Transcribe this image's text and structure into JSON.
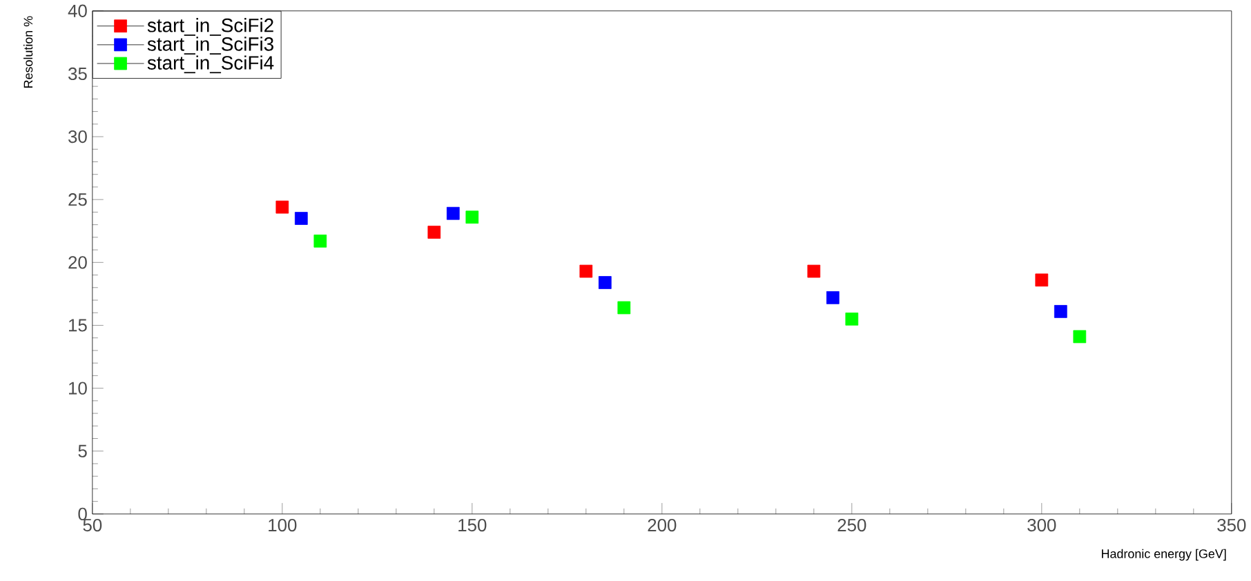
{
  "chart_data": {
    "type": "scatter",
    "xlabel": "Hadronic energy [GeV]",
    "ylabel": "Resolution %",
    "xlim": [
      50,
      350
    ],
    "ylim": [
      0,
      40
    ],
    "xticks": [
      50,
      100,
      150,
      200,
      250,
      300,
      350
    ],
    "yticks": [
      0,
      5,
      10,
      15,
      20,
      25,
      30,
      35,
      40
    ],
    "marker": "square",
    "legend": "top left",
    "grid": false,
    "series": [
      {
        "name": "start_in_SciFi2",
        "color": "#ff0000",
        "x": [
          100,
          140,
          180,
          240,
          300
        ],
        "values": [
          24.4,
          22.4,
          19.3,
          19.3,
          18.6
        ]
      },
      {
        "name": "start_in_SciFi3",
        "color": "#0000ff",
        "x": [
          105,
          145,
          185,
          245,
          305
        ],
        "values": [
          23.5,
          23.9,
          18.4,
          17.2,
          16.1
        ]
      },
      {
        "name": "start_in_SciFi4",
        "color": "#00ff00",
        "x": [
          110,
          150,
          190,
          250,
          310
        ],
        "values": [
          21.7,
          23.6,
          16.4,
          15.5,
          14.1
        ]
      }
    ]
  }
}
